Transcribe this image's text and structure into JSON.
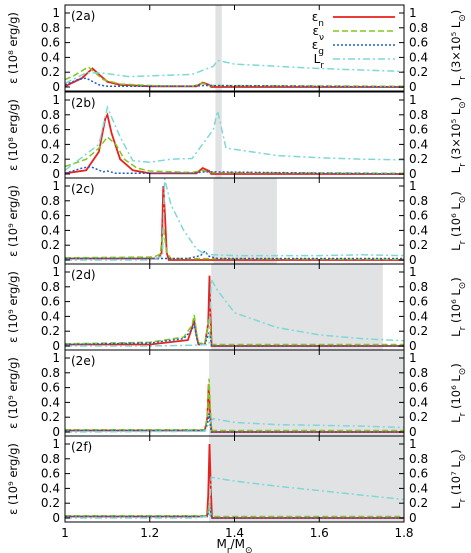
{
  "chart_data": {
    "type": "line",
    "xlabel": "M",
    "xlabel_sub": "r",
    "xlabel_tail": "/M",
    "sun": "⊙",
    "xlim": [
      1.0,
      1.8
    ],
    "xticks": [
      "1",
      "1.2",
      "1.4",
      "1.6",
      "1.8"
    ],
    "grid": false,
    "legend_position": "top-right",
    "legend": [
      {
        "sym": "ε",
        "sub": "n",
        "color": "#e8211e",
        "dash": ""
      },
      {
        "sym": "ε",
        "sub": "ν",
        "color": "#80c81e",
        "dash": "6,3"
      },
      {
        "sym": "ε",
        "sub": "g",
        "color": "#1f5ec8",
        "dash": "2,2"
      },
      {
        "sym": "L",
        "sub": "r",
        "color": "#7fd8d8",
        "dash": "7,3,2,3"
      }
    ],
    "panels": [
      {
        "label": "(2a)",
        "ylabel": "ε (10⁸ erg/g)",
        "y2label_main": "L",
        "y2label_sub": "r",
        "y2label_tail": "(3×10⁵ L",
        "ylim": [
          0,
          1
        ],
        "yticks": [
          "0",
          "0.2",
          "0.4",
          "0.6",
          "0.8",
          "1"
        ],
        "shade": [
          1.355,
          1.37
        ],
        "series": [
          {
            "name": "ε_n",
            "x": [
              1.0,
              1.04,
              1.065,
              1.08,
              1.1,
              1.13,
              1.2,
              1.31,
              1.325,
              1.34,
              1.345,
              1.8
            ],
            "y": [
              0.01,
              0.12,
              0.25,
              0.17,
              0.07,
              0.03,
              0.01,
              0.01,
              0.06,
              0.03,
              0.0,
              0.0
            ]
          },
          {
            "name": "ε_ν",
            "x": [
              1.0,
              1.02,
              1.055,
              1.07,
              1.09,
              1.13,
              1.2,
              1.3,
              1.325,
              1.34,
              1.8
            ],
            "y": [
              0.1,
              0.15,
              0.27,
              0.2,
              0.1,
              0.04,
              0.02,
              0.01,
              0.05,
              0.02,
              0.01
            ]
          },
          {
            "name": "ε_g",
            "x": [
              1.0,
              1.03,
              1.05,
              1.08,
              1.1,
              1.3,
              1.33,
              1.8
            ],
            "y": [
              0.03,
              0.1,
              0.12,
              0.03,
              0.01,
              0.01,
              0.02,
              0.0
            ]
          },
          {
            "name": "L_r",
            "x": [
              1.0,
              1.05,
              1.08,
              1.1,
              1.15,
              1.2,
              1.3,
              1.35,
              1.36,
              1.4,
              1.5,
              1.6,
              1.7,
              1.8
            ],
            "y": [
              0.05,
              0.19,
              0.19,
              0.18,
              0.14,
              0.15,
              0.17,
              0.28,
              0.36,
              0.31,
              0.28,
              0.25,
              0.23,
              0.21
            ]
          }
        ]
      },
      {
        "label": "(2b)",
        "ylabel": "ε (10⁸ erg/g)",
        "y2label_main": "L",
        "y2label_sub": "r",
        "y2label_tail": "(3×10⁵ L",
        "ylim": [
          0,
          1
        ],
        "yticks": [
          "0",
          "0.2",
          "0.4",
          "0.6",
          "0.8",
          "1"
        ],
        "shade": [
          1.355,
          1.37
        ],
        "series": [
          {
            "name": "ε_n",
            "x": [
              1.0,
              1.05,
              1.08,
              1.095,
              1.1,
              1.11,
              1.13,
              1.16,
              1.2,
              1.31,
              1.325,
              1.34,
              1.345,
              1.8
            ],
            "y": [
              0.01,
              0.05,
              0.3,
              0.75,
              0.8,
              0.55,
              0.2,
              0.05,
              0.01,
              0.01,
              0.08,
              0.04,
              0.0,
              0.0
            ]
          },
          {
            "name": "ε_ν",
            "x": [
              1.0,
              1.05,
              1.08,
              1.1,
              1.12,
              1.14,
              1.17,
              1.2,
              1.3,
              1.325,
              1.34,
              1.8
            ],
            "y": [
              0.1,
              0.2,
              0.35,
              0.5,
              0.4,
              0.2,
              0.08,
              0.04,
              0.02,
              0.05,
              0.02,
              0.01
            ]
          },
          {
            "name": "ε_g",
            "x": [
              1.0,
              1.04,
              1.06,
              1.09,
              1.1,
              1.12,
              1.3,
              1.33,
              1.8
            ],
            "y": [
              0.01,
              0.08,
              0.1,
              0.03,
              0.04,
              0.01,
              0.01,
              0.03,
              0.0
            ]
          },
          {
            "name": "L_r",
            "x": [
              1.0,
              1.08,
              1.1,
              1.13,
              1.16,
              1.2,
              1.25,
              1.3,
              1.35,
              1.36,
              1.38,
              1.5,
              1.6,
              1.7,
              1.8
            ],
            "y": [
              0.05,
              0.4,
              0.9,
              0.5,
              0.18,
              0.16,
              0.2,
              0.21,
              0.6,
              0.85,
              0.35,
              0.25,
              0.22,
              0.2,
              0.19
            ]
          }
        ]
      },
      {
        "label": "(2c)",
        "ylabel": "ε (10⁹ erg/g)",
        "y2label_main": "L",
        "y2label_sub": "r",
        "y2label_tail": "(10⁶ L",
        "ylim": [
          0,
          1
        ],
        "yticks": [
          "0",
          "0.2",
          "0.4",
          "0.6",
          "0.8",
          "1"
        ],
        "shade": [
          1.35,
          1.5
        ],
        "series": [
          {
            "name": "ε_n",
            "x": [
              1.0,
              1.22,
              1.228,
              1.232,
              1.236,
              1.24,
              1.245,
              1.8
            ],
            "y": [
              0.02,
              0.02,
              0.1,
              1.0,
              0.6,
              0.1,
              0.0,
              0.0
            ]
          },
          {
            "name": "ε_ν",
            "x": [
              1.0,
              1.21,
              1.225,
              1.232,
              1.24,
              1.25,
              1.8
            ],
            "y": [
              0.03,
              0.04,
              0.08,
              0.45,
              0.1,
              0.02,
              0.01
            ]
          },
          {
            "name": "ε_g",
            "x": [
              1.0,
              1.25,
              1.29,
              1.32,
              1.33,
              1.34,
              1.36,
              1.8
            ],
            "y": [
              0.02,
              0.02,
              0.02,
              0.06,
              0.12,
              0.05,
              0.02,
              0.02
            ]
          },
          {
            "name": "L_r",
            "x": [
              1.0,
              1.2,
              1.23,
              1.235,
              1.25,
              1.28,
              1.31,
              1.33,
              1.35,
              1.4,
              1.5,
              1.6,
              1.7,
              1.8
            ],
            "y": [
              0.0,
              0.0,
              0.05,
              1.1,
              0.75,
              0.4,
              0.15,
              0.08,
              0.07,
              0.06,
              0.06,
              0.06,
              0.07,
              0.06
            ]
          }
        ]
      },
      {
        "label": "(2d)",
        "ylabel": "ε (10⁹ erg/g)",
        "y2label_main": "L",
        "y2label_sub": "r",
        "y2label_tail": "(10⁶ L",
        "ylim": [
          0,
          1
        ],
        "yticks": [
          "0",
          "0.2",
          "0.4",
          "0.6",
          "0.8",
          "1"
        ],
        "shade": [
          1.345,
          1.75
        ],
        "series": [
          {
            "name": "ε_n",
            "x": [
              1.0,
              1.2,
              1.29,
              1.3,
              1.305,
              1.31,
              1.315,
              1.33,
              1.338,
              1.341,
              1.343,
              1.346,
              1.8
            ],
            "y": [
              0.02,
              0.02,
              0.08,
              0.25,
              0.35,
              0.15,
              0.02,
              0.02,
              0.3,
              0.95,
              0.5,
              0.0,
              0.0
            ]
          },
          {
            "name": "ε_ν",
            "x": [
              1.0,
              1.2,
              1.28,
              1.3,
              1.305,
              1.31,
              1.315,
              1.33,
              1.341,
              1.346,
              1.8
            ],
            "y": [
              0.03,
              0.05,
              0.12,
              0.28,
              0.42,
              0.2,
              0.04,
              0.03,
              0.4,
              0.02,
              0.02
            ]
          },
          {
            "name": "ε_g",
            "x": [
              1.0,
              1.2,
              1.28,
              1.3,
              1.305,
              1.31,
              1.315,
              1.33,
              1.341,
              1.346,
              1.8
            ],
            "y": [
              0.02,
              0.04,
              0.1,
              0.22,
              0.3,
              0.12,
              0.02,
              0.02,
              0.2,
              0.0,
              0.0
            ]
          },
          {
            "name": "L_r",
            "x": [
              1.0,
              1.2,
              1.3,
              1.34,
              1.345,
              1.36,
              1.4,
              1.5,
              1.6,
              1.7,
              1.8
            ],
            "y": [
              0.0,
              0.0,
              0.01,
              0.02,
              0.9,
              0.75,
              0.45,
              0.25,
              0.15,
              0.1,
              0.07
            ]
          }
        ]
      },
      {
        "label": "(2e)",
        "ylabel": "ε (10⁹ erg/g)",
        "y2label_main": "L",
        "y2label_sub": "r",
        "y2label_tail": "(10⁶ L",
        "ylim": [
          0,
          1
        ],
        "yticks": [
          "0",
          "0.2",
          "0.4",
          "0.6",
          "0.8",
          "1"
        ],
        "shade": [
          1.34,
          1.8
        ],
        "series": [
          {
            "name": "ε_n",
            "x": [
              1.0,
              1.33,
              1.336,
              1.339,
              1.342,
              1.346,
              1.8
            ],
            "y": [
              0.02,
              0.02,
              0.2,
              0.65,
              0.3,
              0.0,
              0.0
            ]
          },
          {
            "name": "ε_ν",
            "x": [
              1.0,
              1.33,
              1.336,
              1.34,
              1.345,
              1.8
            ],
            "y": [
              0.03,
              0.03,
              0.2,
              0.72,
              0.02,
              0.02
            ]
          },
          {
            "name": "ε_g",
            "x": [
              1.0,
              1.33,
              1.336,
              1.34,
              1.345,
              1.8
            ],
            "y": [
              0.02,
              0.02,
              0.1,
              0.25,
              0.0,
              0.0
            ]
          },
          {
            "name": "L_r",
            "x": [
              1.0,
              1.33,
              1.34,
              1.35,
              1.4,
              1.5,
              1.6,
              1.7,
              1.8
            ],
            "y": [
              0.0,
              0.01,
              0.12,
              0.18,
              0.13,
              0.1,
              0.09,
              0.08,
              0.06
            ]
          }
        ]
      },
      {
        "label": "(2f)",
        "ylabel": "ε (10⁹ erg/g)",
        "y2label_main": "L",
        "y2label_sub": "r",
        "y2label_tail": "(10⁷ L",
        "ylim": [
          0,
          1
        ],
        "yticks": [
          "0",
          "0.2",
          "0.4",
          "0.6",
          "0.8",
          "1"
        ],
        "shade": [
          1.34,
          1.8
        ],
        "series": [
          {
            "name": "ε_n",
            "x": [
              1.0,
              1.335,
              1.338,
              1.341,
              1.344,
              1.347,
              1.8
            ],
            "y": [
              0.02,
              0.02,
              0.3,
              1.0,
              0.4,
              0.0,
              0.0
            ]
          },
          {
            "name": "ε_ν",
            "x": [
              1.0,
              1.335,
              1.338,
              1.341,
              1.346,
              1.8
            ],
            "y": [
              0.03,
              0.03,
              0.1,
              0.2,
              0.02,
              0.02
            ]
          },
          {
            "name": "ε_g",
            "x": [
              1.0,
              1.335,
              1.339,
              1.342,
              1.346,
              1.8
            ],
            "y": [
              0.02,
              0.02,
              0.08,
              0.15,
              0.0,
              0.0
            ]
          },
          {
            "name": "L_r",
            "x": [
              1.0,
              1.3,
              1.34,
              1.345,
              1.4,
              1.5,
              1.6,
              1.7,
              1.8
            ],
            "y": [
              0.0,
              0.0,
              0.02,
              0.55,
              0.5,
              0.43,
              0.37,
              0.31,
              0.25
            ]
          }
        ]
      }
    ]
  }
}
